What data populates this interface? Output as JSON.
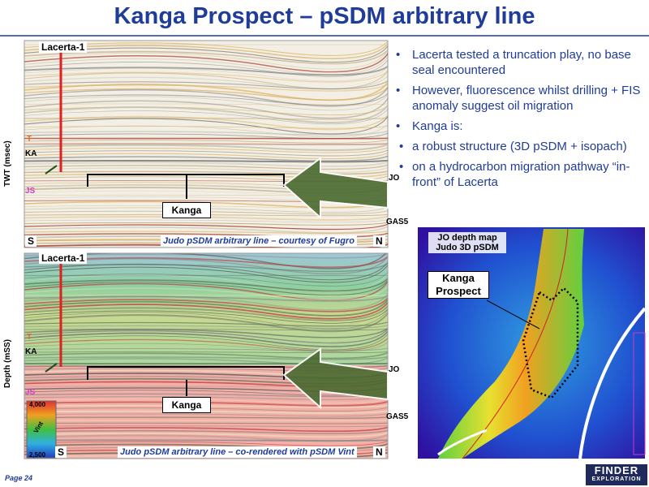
{
  "title": "Kanga Prospect – pSDM arbitrary line",
  "panels": [
    {
      "well": "Lacerta-1",
      "axis_label": "TWT (msec)",
      "horizons": [
        "T",
        "KA",
        "JS"
      ],
      "right_labels": [
        "JO",
        "GAS5"
      ],
      "south": "S",
      "north": "N",
      "target": "Kanga",
      "caption": "Judo pSDM arbitrary line – courtesy of Fugro"
    },
    {
      "well": "Lacerta-1",
      "axis_label": "Depth (mSS)",
      "horizons": [
        "T",
        "KA",
        "JS"
      ],
      "right_labels": [
        "JO",
        "GAS5"
      ],
      "south": "S",
      "north": "N",
      "target": "Kanga",
      "caption": "Judo pSDM arbitrary line – co-rendered with pSDM Vint",
      "colorbar": {
        "max": "4,000",
        "label": "Vint",
        "min": "2,500"
      }
    }
  ],
  "bullets": [
    {
      "text": "Lacerta tested a truncation play, no base seal encountered",
      "sub": []
    },
    {
      "text": "However, fluorescence whilst drilling + FIS anomaly suggest oil migration",
      "sub": []
    },
    {
      "text": "Kanga is:",
      "sub": [
        "a robust structure (3D pSDM + isopach)",
        "on a hydrocarbon migration pathway “in-front” of Lacerta"
      ]
    }
  ],
  "map": {
    "title": "JO depth map",
    "subtitle": "Judo 3D pSDM",
    "label": "Kanga Prospect"
  },
  "footer": {
    "page": "Page 24",
    "logo": [
      "FINDER",
      "EXPLORATION"
    ]
  }
}
